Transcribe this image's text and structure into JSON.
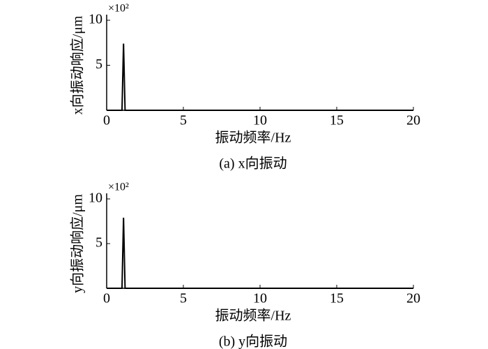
{
  "chart_data": [
    {
      "type": "line",
      "multiplier": "×10²",
      "y_label": "x向振动响应/μm",
      "x_label": "振动频率/Hz",
      "caption": "(a) x向振动",
      "x": [
        0,
        1.0,
        1.1,
        1.2,
        20
      ],
      "values": [
        0,
        0,
        7.4,
        0,
        0
      ],
      "color": "#000000",
      "xlim": [
        0,
        20
      ],
      "xticks": [
        0,
        5,
        10,
        15,
        20
      ],
      "ylim": [
        0,
        10
      ],
      "yticks": [
        5,
        10
      ]
    },
    {
      "type": "line",
      "multiplier": "×10²",
      "y_label": "y向振动响应/μm",
      "x_label": "振动频率/Hz",
      "caption": "(b) y向振动",
      "x": [
        0,
        1.0,
        1.1,
        1.2,
        20
      ],
      "values": [
        0,
        0,
        7.9,
        0,
        0
      ],
      "color": "#000000",
      "xlim": [
        0,
        20
      ],
      "xticks": [
        0,
        5,
        10,
        15,
        20
      ],
      "ylim": [
        0,
        10
      ],
      "yticks": [
        5,
        10
      ]
    }
  ]
}
